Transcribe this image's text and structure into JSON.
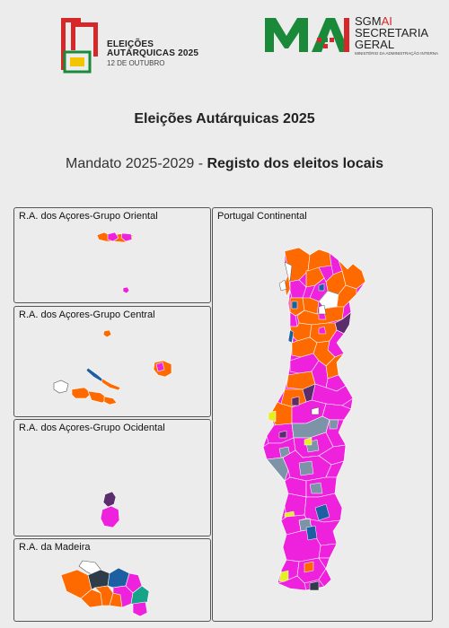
{
  "header": {
    "event_logo": {
      "line1": "ELEIÇÕES",
      "line2": "AUTÁRQUICAS 2025",
      "date": "12 DE OUTUBRO"
    },
    "sgmai_logo": {
      "name_prefix": "SGM",
      "name_accent": "AI",
      "line2": "SECRETARIA",
      "line3": "GERAL",
      "ministry": "MINISTÉRIO DA ADMINISTRAÇÃO INTERNA"
    }
  },
  "title": "Eleições Autárquicas 2025",
  "subtitle": {
    "prefix": "Mandato 2025-2029 - ",
    "bold": "Registo dos eleitos locais"
  },
  "panels": {
    "oriental": "R.A. dos Açores-Grupo Oriental",
    "central": "R.A. dos Açores-Grupo Central",
    "ocidental": "R.A. dos Açores-Grupo Ocidental",
    "madeira": "R.A. da Madeira",
    "continental": "Portugal Continental"
  },
  "colors": {
    "ps_magenta": "#ee22dd",
    "psd_orange": "#ff6a00",
    "pcp_grey_blue": "#7d93a8",
    "independent_purple": "#5c2d6c",
    "chega_dark": "#2f3d4a",
    "cds_blue": "#1c5fa3",
    "yellow": "#e6ef22",
    "teal": "#15a38a",
    "white": "#ffffff",
    "logo_green": "#1a8a3a",
    "logo_red": "#d62828",
    "logo_yellow": "#f2c500"
  }
}
